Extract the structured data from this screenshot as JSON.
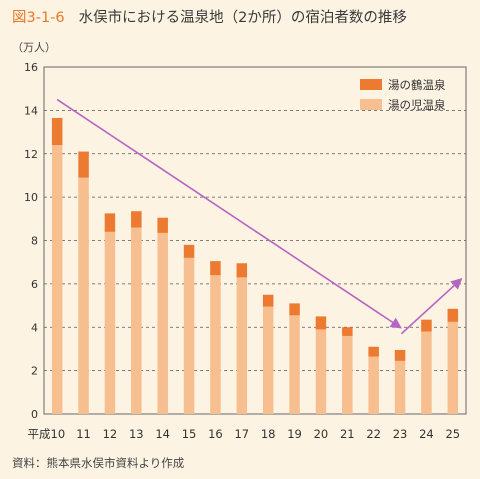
{
  "figure": {
    "number": "図3-1-6",
    "title": "水俣市における温泉地（2か所）の宿泊者数の推移",
    "unit": "（万人）",
    "source": "資料：熊本県水俣市資料より作成"
  },
  "colors": {
    "background": "#fdf3e3",
    "accent": "#e8782a",
    "bar_light": "#f7be90",
    "bar_dark": "#ec7a30",
    "arrow": "#b466c2",
    "grid": "#555555"
  },
  "chart_data": {
    "type": "bar",
    "stacked": true,
    "categories": [
      "平成10",
      "11",
      "12",
      "13",
      "14",
      "15",
      "16",
      "17",
      "18",
      "19",
      "20",
      "21",
      "22",
      "23",
      "24",
      "25"
    ],
    "series": [
      {
        "name": "湯の児温泉",
        "values": [
          12.4,
          10.9,
          8.4,
          8.6,
          8.35,
          7.2,
          6.4,
          6.3,
          4.95,
          4.55,
          3.9,
          3.6,
          2.65,
          2.45,
          3.8,
          4.25
        ]
      },
      {
        "name": "湯の鶴温泉",
        "values": [
          1.25,
          1.2,
          0.85,
          0.75,
          0.7,
          0.6,
          0.65,
          0.65,
          0.55,
          0.55,
          0.6,
          0.4,
          0.45,
          0.5,
          0.55,
          0.6
        ]
      }
    ],
    "ylim": [
      0,
      16
    ],
    "yticks": [
      0,
      2,
      4,
      6,
      8,
      10,
      12,
      14,
      16
    ],
    "grid": true,
    "legend_position": "top-right",
    "trend_arrows": [
      {
        "from": [
          0,
          14.5
        ],
        "to": [
          13,
          4.0
        ]
      },
      {
        "from": [
          13.05,
          3.7
        ],
        "to": [
          15.3,
          6.2
        ]
      }
    ]
  }
}
